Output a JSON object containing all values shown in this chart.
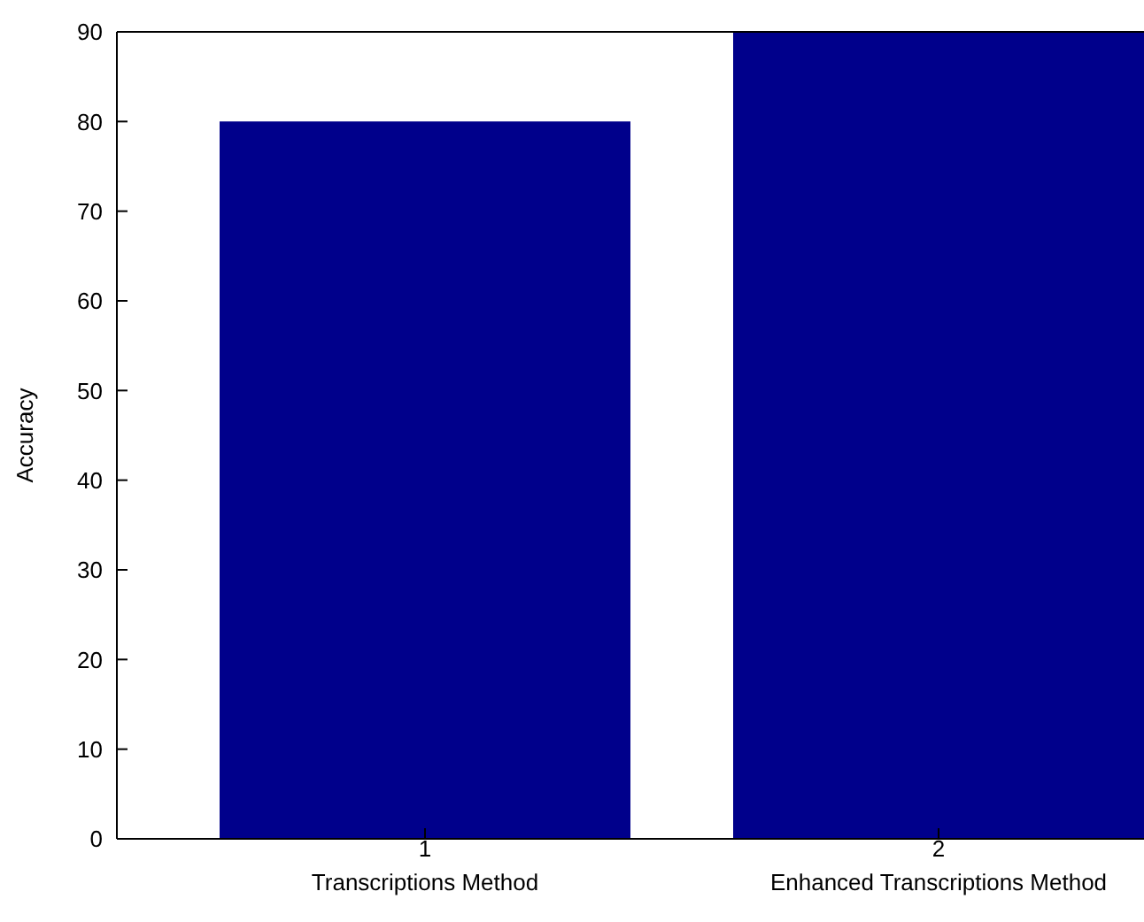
{
  "chart_data": {
    "type": "bar",
    "x": [
      1,
      2
    ],
    "values": [
      80,
      90
    ],
    "color": "#00008b",
    "xlim": [
      0.4,
      2.4
    ],
    "xticks": [
      1,
      2
    ],
    "ylim": [
      0,
      90
    ],
    "yticks": [
      0,
      10,
      20,
      30,
      40,
      50,
      60,
      70,
      80,
      90
    ],
    "ylabel": "Accuracy",
    "annotations": [
      "Transcriptions Method",
      "Enhanced Transcriptions Method"
    ]
  }
}
